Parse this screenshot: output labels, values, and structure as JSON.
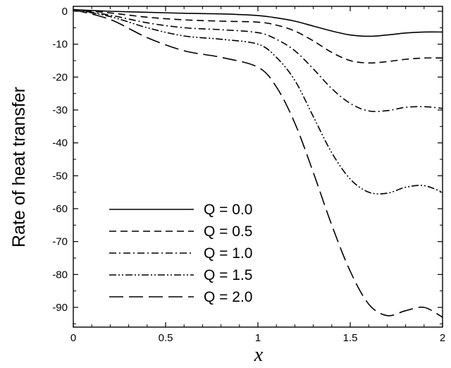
{
  "chart_data": {
    "type": "line",
    "xlabel": "x",
    "ylabel": "Rate of heat transfer",
    "xlim": [
      0,
      2
    ],
    "ylim": [
      -96,
      1.5
    ],
    "xticks": [
      0,
      0.5,
      1,
      1.5,
      2
    ],
    "xtick_labels": [
      "0",
      "0.5",
      "1",
      "1.5",
      "2"
    ],
    "yticks": [
      0,
      -10,
      -20,
      -30,
      -40,
      -50,
      -60,
      -70,
      -80,
      -90
    ],
    "ytick_labels": [
      "0",
      "-10",
      "-20",
      "-30",
      "-40",
      "-50",
      "-60",
      "-70",
      "-80",
      "-90"
    ],
    "grid": false,
    "legend_position": "bottom-left",
    "series": [
      {
        "name": "Q = 0.0",
        "dash": "solid",
        "x": [
          0,
          0.2,
          0.4,
          0.6,
          0.8,
          1.0,
          1.1,
          1.2,
          1.3,
          1.4,
          1.5,
          1.6,
          1.7,
          1.8,
          1.9,
          2.0
        ],
        "y": [
          0.5,
          0,
          -0.3,
          -0.6,
          -0.8,
          -1.3,
          -2,
          -3,
          -4.5,
          -6,
          -7.2,
          -7.6,
          -7.2,
          -6.6,
          -6.3,
          -6.3
        ]
      },
      {
        "name": "Q = 0.5",
        "dash": "dashed",
        "x": [
          0,
          0.2,
          0.4,
          0.6,
          0.8,
          1.0,
          1.1,
          1.2,
          1.3,
          1.4,
          1.5,
          1.6,
          1.7,
          1.8,
          1.9,
          2.0
        ],
        "y": [
          0.5,
          -0.5,
          -1.8,
          -2.6,
          -3,
          -3.3,
          -4.2,
          -6,
          -9,
          -12.5,
          -15,
          -15.7,
          -15.3,
          -14.6,
          -14.2,
          -14.2
        ]
      },
      {
        "name": "Q = 1.0",
        "dash": "dashdot",
        "x": [
          0,
          0.2,
          0.4,
          0.6,
          0.8,
          1.0,
          1.1,
          1.2,
          1.3,
          1.4,
          1.5,
          1.6,
          1.7,
          1.8,
          1.9,
          2.0
        ],
        "y": [
          0.5,
          -1.2,
          -3.5,
          -5,
          -5.6,
          -6.5,
          -8.5,
          -12,
          -17.5,
          -23.5,
          -28,
          -30.3,
          -30.2,
          -29.2,
          -29,
          -29.5
        ]
      },
      {
        "name": "Q = 1.5",
        "dash": "dashdotdot",
        "x": [
          0,
          0.2,
          0.4,
          0.6,
          0.8,
          1.0,
          1.1,
          1.2,
          1.3,
          1.4,
          1.5,
          1.6,
          1.7,
          1.8,
          1.9,
          2.0
        ],
        "y": [
          0.5,
          -1.6,
          -5,
          -7.5,
          -8.5,
          -10,
          -14,
          -21,
          -32,
          -43,
          -51,
          -55,
          -55.3,
          -53.5,
          -53,
          -55
        ]
      },
      {
        "name": "Q = 2.0",
        "dash": "longdash",
        "x": [
          0,
          0.2,
          0.4,
          0.6,
          0.8,
          1.0,
          1.1,
          1.2,
          1.3,
          1.4,
          1.5,
          1.6,
          1.7,
          1.8,
          1.9,
          2.0
        ],
        "y": [
          0.5,
          -2.5,
          -8,
          -12,
          -14,
          -17,
          -23,
          -34,
          -49,
          -65,
          -79,
          -89,
          -92.5,
          -91,
          -90,
          -93
        ]
      }
    ]
  }
}
